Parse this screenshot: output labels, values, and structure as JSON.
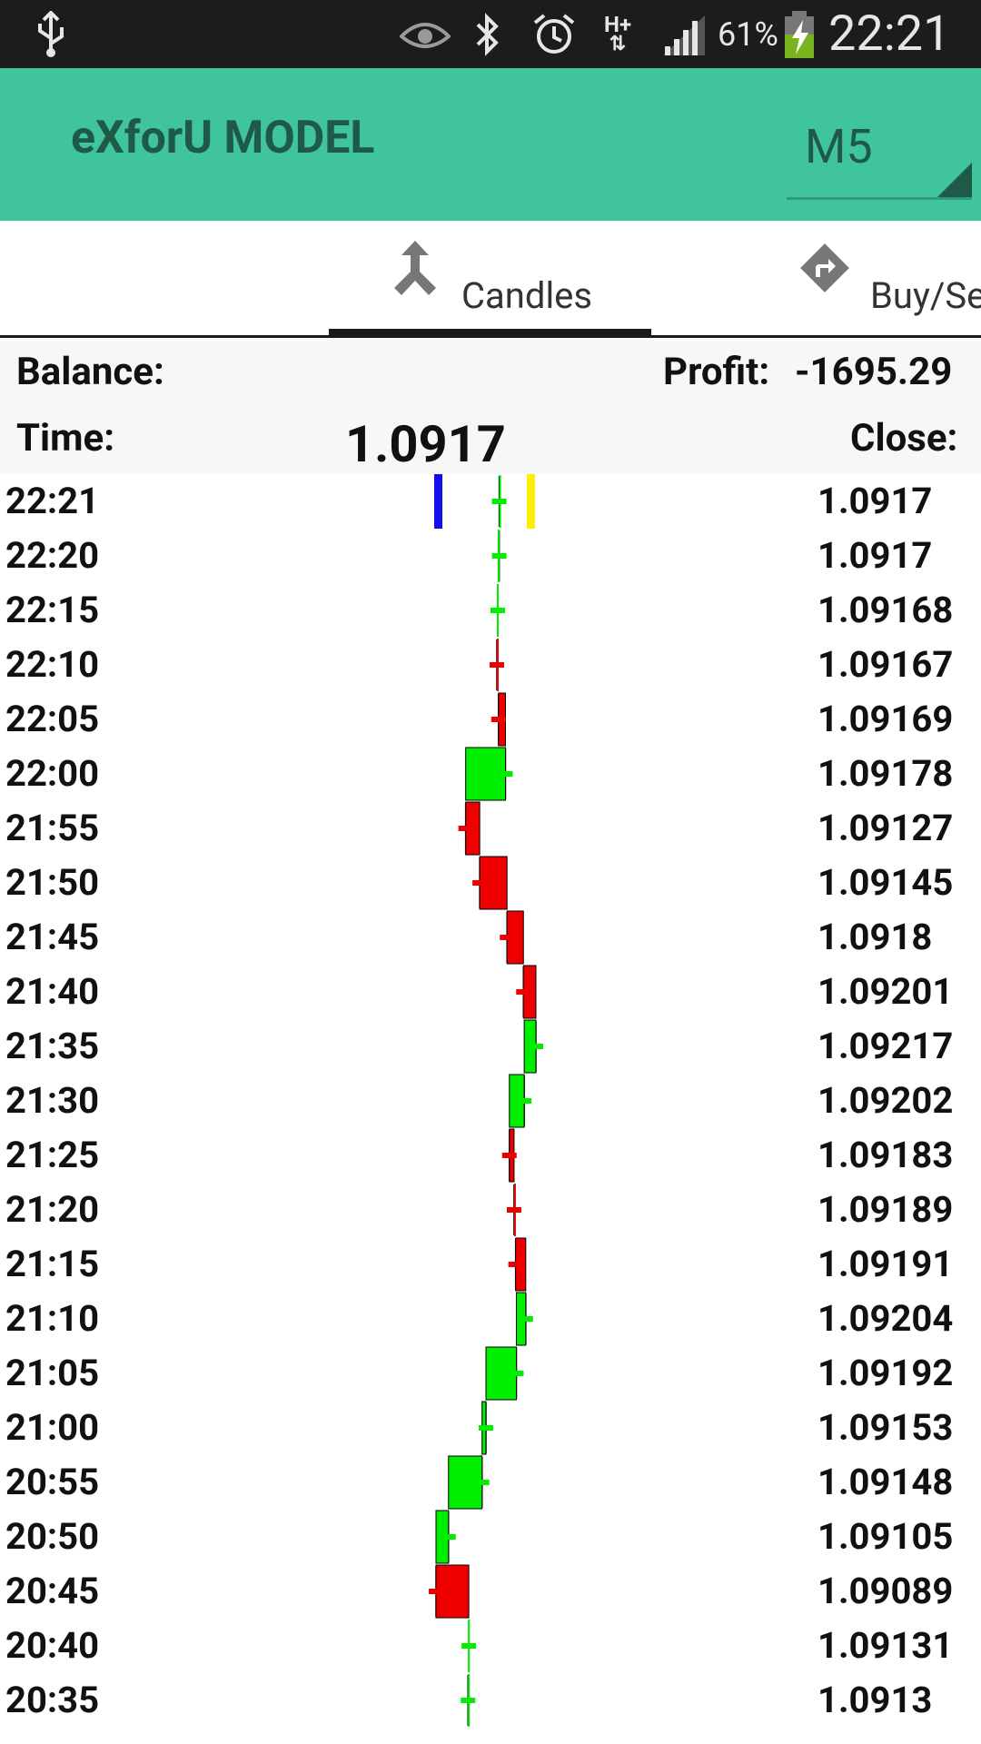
{
  "status_bar": {
    "icons": [
      "usb-icon",
      "eye-icon",
      "bluetooth-icon",
      "alarm-icon",
      "hplus-data-icon",
      "signal-icon",
      "battery-charging-icon"
    ],
    "data_type": "H+",
    "battery_percent": "61%",
    "clock": "22:21"
  },
  "app_bar": {
    "title": "eXforU MODEL",
    "timeframe": "M5"
  },
  "tabs": [
    {
      "label": "Candles",
      "icon": "merge-arrows-icon",
      "selected": true
    },
    {
      "label": "Buy/Se",
      "icon": "turn-right-diamond-icon",
      "selected": false
    }
  ],
  "info": {
    "balance_label": "Balance:",
    "profit_label": "Profit:",
    "profit_value": "-1695.29",
    "time_label": "Time:",
    "current_price": "1.0917",
    "close_label": "Close:"
  },
  "colors": {
    "accent": "#3fc49b",
    "bull": "#00ee00",
    "bear": "#ee0000",
    "marker_left": "#1010ee",
    "marker_right": "#ffee00"
  },
  "rows": [
    {
      "time": "22:21",
      "close": "1.0917"
    },
    {
      "time": "22:20",
      "close": "1.0917"
    },
    {
      "time": "22:15",
      "close": "1.09168"
    },
    {
      "time": "22:10",
      "close": "1.09167"
    },
    {
      "time": "22:05",
      "close": "1.09169"
    },
    {
      "time": "22:00",
      "close": "1.09178"
    },
    {
      "time": "21:55",
      "close": "1.09127"
    },
    {
      "time": "21:50",
      "close": "1.09145"
    },
    {
      "time": "21:45",
      "close": "1.0918"
    },
    {
      "time": "21:40",
      "close": "1.09201"
    },
    {
      "time": "21:35",
      "close": "1.09217"
    },
    {
      "time": "21:30",
      "close": "1.09202"
    },
    {
      "time": "21:25",
      "close": "1.09183"
    },
    {
      "time": "21:20",
      "close": "1.09189"
    },
    {
      "time": "21:15",
      "close": "1.09191"
    },
    {
      "time": "21:10",
      "close": "1.09204"
    },
    {
      "time": "21:05",
      "close": "1.09192"
    },
    {
      "time": "21:00",
      "close": "1.09153"
    },
    {
      "time": "20:55",
      "close": "1.09148"
    },
    {
      "time": "20:50",
      "close": "1.09105"
    },
    {
      "time": "20:45",
      "close": "1.09089"
    },
    {
      "time": "20:40",
      "close": "1.09131"
    },
    {
      "time": "20:35",
      "close": "1.0913"
    }
  ]
}
